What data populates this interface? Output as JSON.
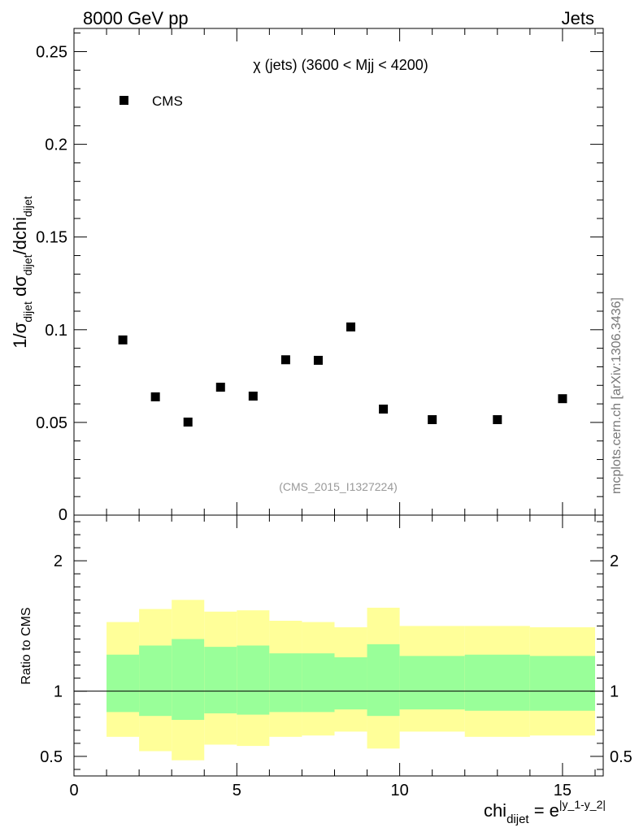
{
  "header": {
    "left": "8000 GeV pp",
    "right": "Jets"
  },
  "plot_title": "χ (jets) (3600 < Mjj < 4200)",
  "watermark": "(CMS_2015_I1327224)",
  "side_credit": "mcplots.cern.ch [arXiv:1306.3436]",
  "y_label": {
    "p1": "1/σ",
    "p1_sub": "dijet",
    "p2": " dσ",
    "p2_sub": "dijet",
    "p3": "/dchi",
    "p3_sub": "dijet"
  },
  "ratio_label": "Ratio to CMS",
  "x_label": {
    "base": "chi",
    "sub": "dijet",
    "eq": " = e",
    "sup": "|y_1-y_2|"
  },
  "colors": {
    "outer_band": "#ffff99",
    "inner_band": "#99ff99",
    "marker": "#000000"
  },
  "chart_data": [
    {
      "type": "scatter",
      "legend": "CMS",
      "legend_position": "top-left",
      "xlim": [
        0,
        16.25
      ],
      "ylim": [
        0,
        0.2625
      ],
      "y_ticks": [
        0.05,
        0.1,
        0.15,
        0.2,
        0.25
      ],
      "y_tick_labels": [
        "0.05",
        "0.1",
        "0.15",
        "0.2",
        "0.25"
      ],
      "y_zero_label": "0",
      "points": [
        {
          "x": 1.5,
          "y": 0.0945
        },
        {
          "x": 2.5,
          "y": 0.0638
        },
        {
          "x": 3.5,
          "y": 0.0502
        },
        {
          "x": 4.5,
          "y": 0.069
        },
        {
          "x": 5.5,
          "y": 0.0642
        },
        {
          "x": 6.5,
          "y": 0.0838
        },
        {
          "x": 7.5,
          "y": 0.0835
        },
        {
          "x": 8.5,
          "y": 0.1015
        },
        {
          "x": 9.5,
          "y": 0.0572
        },
        {
          "x": 11,
          "y": 0.0515
        },
        {
          "x": 13,
          "y": 0.0515
        },
        {
          "x": 15,
          "y": 0.0628
        }
      ]
    },
    {
      "type": "area",
      "xlim": [
        0,
        16.25
      ],
      "ylim": [
        0.35,
        2.35
      ],
      "reference_line": 1,
      "x_ticks": [
        0,
        5,
        10,
        15
      ],
      "x_tick_labels": [
        "0",
        "5",
        "10",
        "15"
      ],
      "y_ticks": [
        0.5,
        1,
        2
      ],
      "y_tick_labels": [
        "0.5",
        "1",
        "2"
      ],
      "bins": [
        {
          "x0": 1,
          "x1": 2,
          "outer": [
            0.65,
            1.53
          ],
          "inner": [
            0.84,
            1.28
          ]
        },
        {
          "x0": 2,
          "x1": 3,
          "outer": [
            0.54,
            1.63
          ],
          "inner": [
            0.81,
            1.35
          ]
        },
        {
          "x0": 3,
          "x1": 4,
          "outer": [
            0.47,
            1.7
          ],
          "inner": [
            0.78,
            1.4
          ]
        },
        {
          "x0": 4,
          "x1": 5,
          "outer": [
            0.59,
            1.61
          ],
          "inner": [
            0.83,
            1.34
          ]
        },
        {
          "x0": 5,
          "x1": 6,
          "outer": [
            0.58,
            1.62
          ],
          "inner": [
            0.82,
            1.35
          ]
        },
        {
          "x0": 6,
          "x1": 7,
          "outer": [
            0.65,
            1.54
          ],
          "inner": [
            0.84,
            1.29
          ]
        },
        {
          "x0": 7,
          "x1": 8,
          "outer": [
            0.66,
            1.53
          ],
          "inner": [
            0.84,
            1.29
          ]
        },
        {
          "x0": 8,
          "x1": 9,
          "outer": [
            0.69,
            1.49
          ],
          "inner": [
            0.86,
            1.26
          ]
        },
        {
          "x0": 9,
          "x1": 10,
          "outer": [
            0.56,
            1.64
          ],
          "inner": [
            0.81,
            1.36
          ]
        },
        {
          "x0": 10,
          "x1": 12,
          "outer": [
            0.69,
            1.5
          ],
          "inner": [
            0.86,
            1.27
          ]
        },
        {
          "x0": 12,
          "x1": 14,
          "outer": [
            0.65,
            1.5
          ],
          "inner": [
            0.85,
            1.28
          ]
        },
        {
          "x0": 14,
          "x1": 16,
          "outer": [
            0.66,
            1.49
          ],
          "inner": [
            0.85,
            1.27
          ]
        }
      ]
    }
  ]
}
